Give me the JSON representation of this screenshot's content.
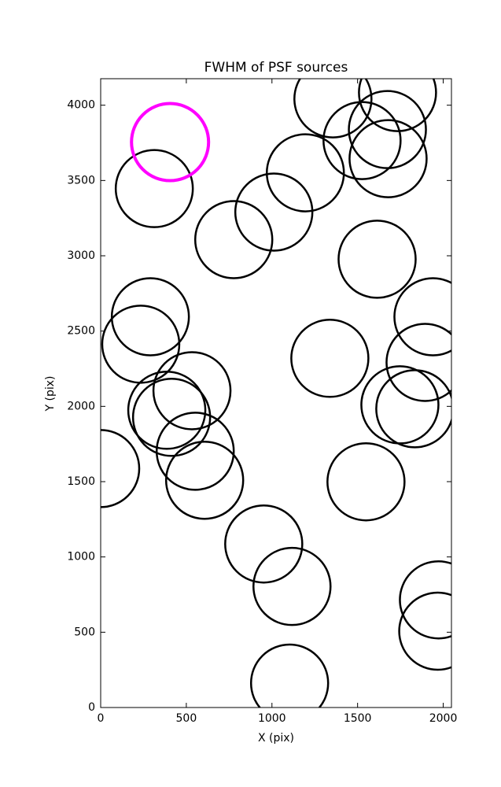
{
  "chart_data": {
    "type": "scatter",
    "title": "FWHM of PSF sources",
    "x_label": "X (pix)",
    "y_label": "Y (pix)",
    "xlim": [
      0,
      2048
    ],
    "ylim": [
      0,
      4176
    ],
    "xticks": [
      0,
      500,
      1000,
      1500,
      2000
    ],
    "yticks": [
      0,
      500,
      1000,
      1500,
      2000,
      2500,
      3000,
      3500,
      4000
    ],
    "grid": false,
    "series": [
      {
        "color": "#000000",
        "x": [
          313,
          777,
          1011,
          1195,
          1356,
          1526,
          1674,
          1733,
          1678,
          1614,
          1940,
          1894,
          1338,
          290,
          234,
          533,
          386,
          414,
          552,
          607,
          0,
          1747,
          1834,
          1549,
          952,
          1117,
          1103,
          1972,
          1968
        ],
        "values": [
          3446,
          3107,
          3290,
          3551,
          4042,
          3765,
          3838,
          4084,
          3645,
          2977,
          2595,
          2292,
          2319,
          2595,
          2413,
          2104,
          1974,
          1927,
          1702,
          1509,
          1587,
          2010,
          1984,
          1499,
          1086,
          804,
          162,
          715,
          507
        ]
      },
      {
        "color": "#ff00ff",
        "x": [
          405
        ],
        "values": [
          3755
        ]
      }
    ]
  }
}
